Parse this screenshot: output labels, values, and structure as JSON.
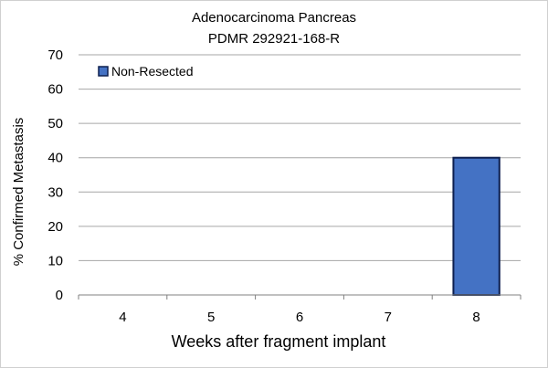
{
  "chart_data": {
    "type": "bar",
    "title": "Adenocarcinoma Pancreas",
    "subtitle": "PDMR 292921-168-R",
    "xlabel": "Weeks after fragment implant",
    "ylabel": "% Confirmed Metastasis",
    "categories": [
      "4",
      "5",
      "6",
      "7",
      "8"
    ],
    "series": [
      {
        "name": "Non-Resected",
        "values": [
          0,
          0,
          0,
          0,
          40
        ],
        "color": "#4472c4",
        "edge_color": "#0d1f4f"
      }
    ],
    "ylim": [
      0,
      70
    ],
    "yticks": [
      "0",
      "10",
      "20",
      "30",
      "40",
      "50",
      "60",
      "70"
    ],
    "grid": true,
    "legend_position": "top-left"
  }
}
